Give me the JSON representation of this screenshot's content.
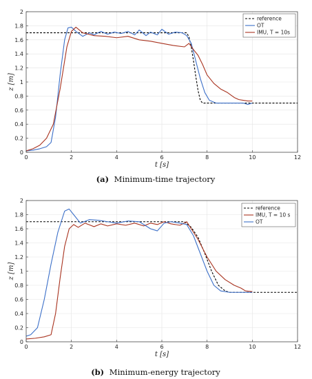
{
  "chart_data": [
    {
      "type": "line",
      "caption_label": "(a)",
      "caption_text": "Minimum-time trajectory",
      "xlabel": "t [s]",
      "ylabel": "z [m]",
      "xlim": [
        0,
        12
      ],
      "ylim": [
        0,
        2
      ],
      "xticks": [
        0,
        2,
        4,
        6,
        8,
        10,
        12
      ],
      "yticks": [
        0,
        0.2,
        0.4,
        0.6,
        0.8,
        1,
        1.2,
        1.4,
        1.6,
        1.8,
        2
      ],
      "grid": true,
      "legend_position": "top-right",
      "series": [
        {
          "name": "reference",
          "color": "#000000",
          "dash": "3,2",
          "x": [
            0,
            7.1,
            7.2,
            7.3,
            7.4,
            7.5,
            7.6,
            7.7,
            7.8,
            8.0,
            12
          ],
          "y": [
            1.7,
            1.7,
            1.64,
            1.5,
            1.3,
            1.08,
            0.88,
            0.74,
            0.7,
            0.7,
            0.7
          ]
        },
        {
          "name": "OT",
          "color": "#3b6fc8",
          "dash": "",
          "x": [
            0,
            0.3,
            0.6,
            0.9,
            1.1,
            1.3,
            1.5,
            1.7,
            1.85,
            2.0,
            2.2,
            2.5,
            2.8,
            3.0,
            3.3,
            3.6,
            3.9,
            4.2,
            4.5,
            4.8,
            5.0,
            5.3,
            5.5,
            5.8,
            6.0,
            6.3,
            6.6,
            6.9,
            7.1,
            7.3,
            7.5,
            7.7,
            7.9,
            8.1,
            8.4,
            8.8,
            9.2,
            9.6,
            9.8,
            10.0
          ],
          "y": [
            0.02,
            0.03,
            0.05,
            0.08,
            0.14,
            0.5,
            1.1,
            1.6,
            1.77,
            1.78,
            1.72,
            1.65,
            1.7,
            1.67,
            1.72,
            1.68,
            1.71,
            1.69,
            1.72,
            1.67,
            1.74,
            1.66,
            1.71,
            1.67,
            1.75,
            1.68,
            1.71,
            1.7,
            1.66,
            1.55,
            1.3,
            1.05,
            0.85,
            0.74,
            0.7,
            0.7,
            0.7,
            0.7,
            0.68,
            0.7
          ]
        },
        {
          "name": "IMU, T = 10s",
          "color": "#a8321e",
          "dash": "",
          "x": [
            0,
            0.3,
            0.6,
            0.9,
            1.2,
            1.5,
            1.8,
            2.0,
            2.2,
            2.5,
            3.0,
            3.5,
            4.0,
            4.5,
            5.0,
            5.5,
            6.0,
            6.5,
            7.0,
            7.2,
            7.4,
            7.6,
            7.8,
            8.0,
            8.3,
            8.6,
            8.9,
            9.2,
            9.4,
            9.6,
            9.8,
            10.0
          ],
          "y": [
            0.02,
            0.05,
            0.1,
            0.2,
            0.4,
            0.9,
            1.5,
            1.72,
            1.78,
            1.7,
            1.66,
            1.65,
            1.63,
            1.65,
            1.6,
            1.58,
            1.55,
            1.52,
            1.5,
            1.55,
            1.46,
            1.38,
            1.25,
            1.1,
            0.98,
            0.9,
            0.85,
            0.78,
            0.75,
            0.74,
            0.73,
            0.73
          ]
        }
      ]
    },
    {
      "type": "line",
      "caption_label": "(b)",
      "caption_text": "Minimum-energy trajectory",
      "xlabel": "t [s]",
      "ylabel": "z [m]",
      "xlim": [
        0,
        12
      ],
      "ylim": [
        0,
        2
      ],
      "xticks": [
        0,
        2,
        4,
        6,
        8,
        10,
        12
      ],
      "yticks": [
        0,
        0.2,
        0.4,
        0.6,
        0.8,
        1,
        1.2,
        1.4,
        1.6,
        1.8,
        2
      ],
      "grid": true,
      "legend_position": "top-right",
      "series": [
        {
          "name": "reference",
          "color": "#000000",
          "dash": "3,2",
          "x": [
            0,
            7.0,
            7.3,
            7.6,
            7.9,
            8.2,
            8.5,
            8.8,
            9.0,
            12
          ],
          "y": [
            1.7,
            1.7,
            1.62,
            1.48,
            1.25,
            1.0,
            0.8,
            0.72,
            0.7,
            0.7
          ]
        },
        {
          "name": "IMU, T = 10 s",
          "color": "#a8321e",
          "dash": "",
          "x": [
            0,
            0.4,
            0.8,
            1.1,
            1.3,
            1.5,
            1.7,
            1.9,
            2.1,
            2.3,
            2.6,
            3.0,
            3.3,
            3.6,
            4.0,
            4.4,
            4.8,
            5.2,
            5.5,
            5.8,
            6.1,
            6.4,
            6.8,
            7.1,
            7.3,
            7.6,
            8.0,
            8.4,
            8.8,
            9.2,
            9.5,
            9.7,
            10.0
          ],
          "y": [
            0.04,
            0.05,
            0.07,
            0.1,
            0.4,
            0.9,
            1.35,
            1.6,
            1.66,
            1.62,
            1.68,
            1.63,
            1.67,
            1.64,
            1.67,
            1.65,
            1.68,
            1.64,
            1.68,
            1.66,
            1.7,
            1.67,
            1.65,
            1.7,
            1.6,
            1.45,
            1.2,
            1.0,
            0.88,
            0.8,
            0.76,
            0.72,
            0.71
          ]
        },
        {
          "name": "OT",
          "color": "#3b6fc8",
          "dash": "",
          "x": [
            0,
            0.2,
            0.5,
            0.8,
            1.1,
            1.4,
            1.7,
            1.9,
            2.1,
            2.4,
            2.8,
            3.2,
            3.6,
            4.0,
            4.5,
            5.0,
            5.5,
            5.8,
            6.1,
            6.4,
            6.8,
            7.1,
            7.4,
            7.7,
            8.0,
            8.3,
            8.6,
            9.0,
            9.5,
            10.0
          ],
          "y": [
            0.08,
            0.1,
            0.2,
            0.6,
            1.1,
            1.55,
            1.85,
            1.88,
            1.8,
            1.68,
            1.73,
            1.72,
            1.7,
            1.68,
            1.71,
            1.7,
            1.6,
            1.57,
            1.68,
            1.7,
            1.68,
            1.66,
            1.5,
            1.25,
            1.0,
            0.8,
            0.72,
            0.7,
            0.7,
            0.7
          ]
        }
      ]
    }
  ]
}
